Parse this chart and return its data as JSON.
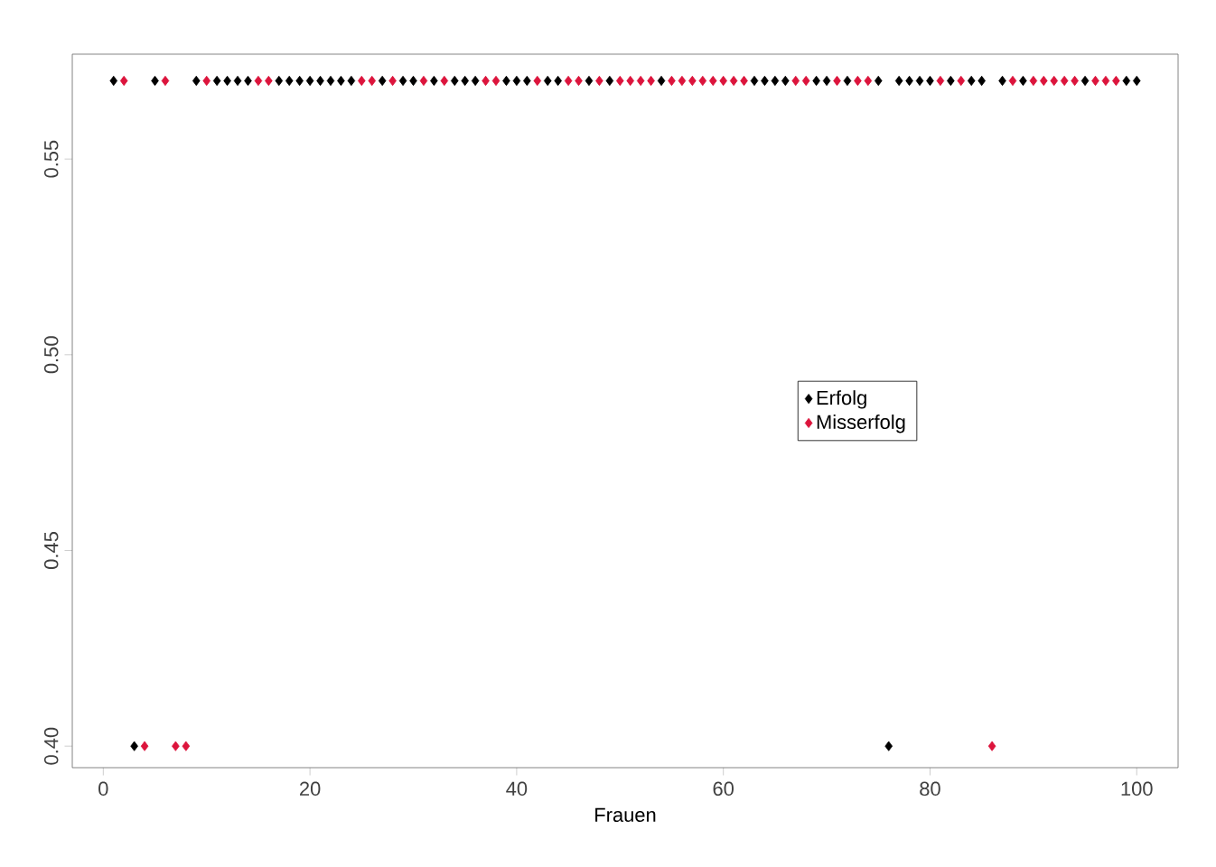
{
  "chart_data": {
    "type": "scatter",
    "xlabel": "Frauen",
    "marker": "diamond",
    "legend": "right",
    "grid": false,
    "xlim": [
      -3,
      104
    ],
    "ylim": [
      0.3945,
      0.5768
    ],
    "xticks": [
      0,
      20,
      40,
      60,
      80,
      100
    ],
    "yticks": [
      {
        "value": 0.4,
        "label": "0.40"
      },
      {
        "value": 0.45,
        "label": "0.45"
      },
      {
        "value": 0.5,
        "label": "0.50"
      },
      {
        "value": 0.55,
        "label": "0.55"
      }
    ],
    "series": [
      {
        "name": "Erfolg",
        "color": "#000000",
        "x": [
          1,
          3,
          5,
          9,
          11,
          12,
          13,
          14,
          17,
          18,
          19,
          20,
          21,
          22,
          23,
          24,
          27,
          29,
          30,
          32,
          34,
          35,
          36,
          39,
          40,
          41,
          43,
          44,
          47,
          49,
          54,
          63,
          64,
          65,
          66,
          69,
          70,
          72,
          75,
          76,
          77,
          78,
          79,
          80,
          82,
          84,
          85,
          87,
          89,
          95,
          99,
          100
        ],
        "values": [
          0.57,
          0.4,
          0.57,
          0.57,
          0.57,
          0.57,
          0.57,
          0.57,
          0.57,
          0.57,
          0.57,
          0.57,
          0.57,
          0.57,
          0.57,
          0.57,
          0.57,
          0.57,
          0.57,
          0.57,
          0.57,
          0.57,
          0.57,
          0.57,
          0.57,
          0.57,
          0.57,
          0.57,
          0.57,
          0.57,
          0.57,
          0.57,
          0.57,
          0.57,
          0.57,
          0.57,
          0.57,
          0.57,
          0.57,
          0.4,
          0.57,
          0.57,
          0.57,
          0.57,
          0.57,
          0.57,
          0.57,
          0.57,
          0.57,
          0.57,
          0.57,
          0.57
        ]
      },
      {
        "name": "Misserfolg",
        "color": "#dc143c",
        "x": [
          2,
          4,
          6,
          7,
          8,
          10,
          15,
          16,
          25,
          26,
          28,
          31,
          33,
          37,
          38,
          42,
          45,
          46,
          48,
          50,
          51,
          52,
          53,
          55,
          56,
          57,
          58,
          59,
          60,
          61,
          62,
          67,
          68,
          71,
          73,
          74,
          81,
          83,
          86,
          88,
          90,
          91,
          92,
          93,
          94,
          96,
          97,
          98
        ],
        "values": [
          0.57,
          0.4,
          0.57,
          0.4,
          0.4,
          0.57,
          0.57,
          0.57,
          0.57,
          0.57,
          0.57,
          0.57,
          0.57,
          0.57,
          0.57,
          0.57,
          0.57,
          0.57,
          0.57,
          0.57,
          0.57,
          0.57,
          0.57,
          0.57,
          0.57,
          0.57,
          0.57,
          0.57,
          0.57,
          0.57,
          0.57,
          0.57,
          0.57,
          0.57,
          0.57,
          0.57,
          0.57,
          0.57,
          0.4,
          0.57,
          0.57,
          0.57,
          0.57,
          0.57,
          0.57,
          0.57,
          0.57,
          0.57
        ]
      }
    ]
  }
}
